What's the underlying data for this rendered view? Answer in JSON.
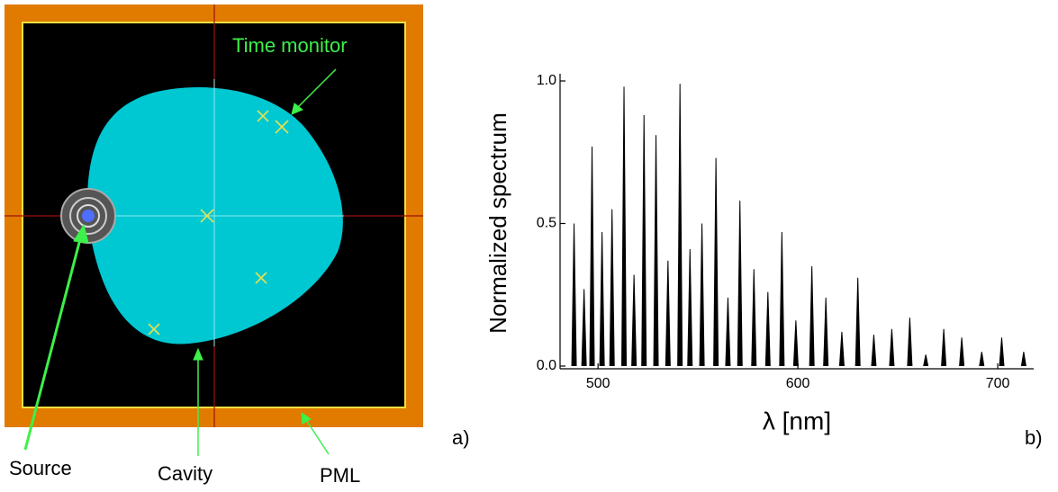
{
  "diagram": {
    "labels": {
      "time_monitor": "Time monitor",
      "source": "Source",
      "cavity": "Cavity",
      "pml": "PML"
    },
    "panel_label": "a)"
  },
  "chart_data": {
    "type": "stem",
    "annotation": "b)",
    "xlabel": "λ [nm]",
    "ylabel": "Normalized spectrum",
    "color": "#000000",
    "x": [
      488,
      493,
      497,
      502,
      507,
      513,
      518,
      523,
      529,
      535,
      541,
      546,
      552,
      559,
      565,
      571,
      578,
      585,
      592,
      599,
      607,
      614,
      622,
      630,
      638,
      647,
      656,
      664,
      673,
      682,
      692,
      702,
      713
    ],
    "values": [
      0.5,
      0.27,
      0.77,
      0.47,
      0.55,
      0.98,
      0.32,
      0.88,
      0.81,
      0.37,
      0.99,
      0.41,
      0.5,
      0.73,
      0.24,
      0.58,
      0.34,
      0.26,
      0.47,
      0.16,
      0.35,
      0.24,
      0.12,
      0.31,
      0.11,
      0.13,
      0.17,
      0.04,
      0.13,
      0.1,
      0.05,
      0.1,
      0.05
    ],
    "xlim": [
      481,
      718
    ],
    "xticks": [
      500,
      600,
      700
    ],
    "ylim": [
      0,
      1.0
    ],
    "yticks": [
      {
        "value": 0,
        "label": "0.0"
      },
      0.5,
      {
        "value": 1,
        "label": "1.0"
      }
    ]
  }
}
